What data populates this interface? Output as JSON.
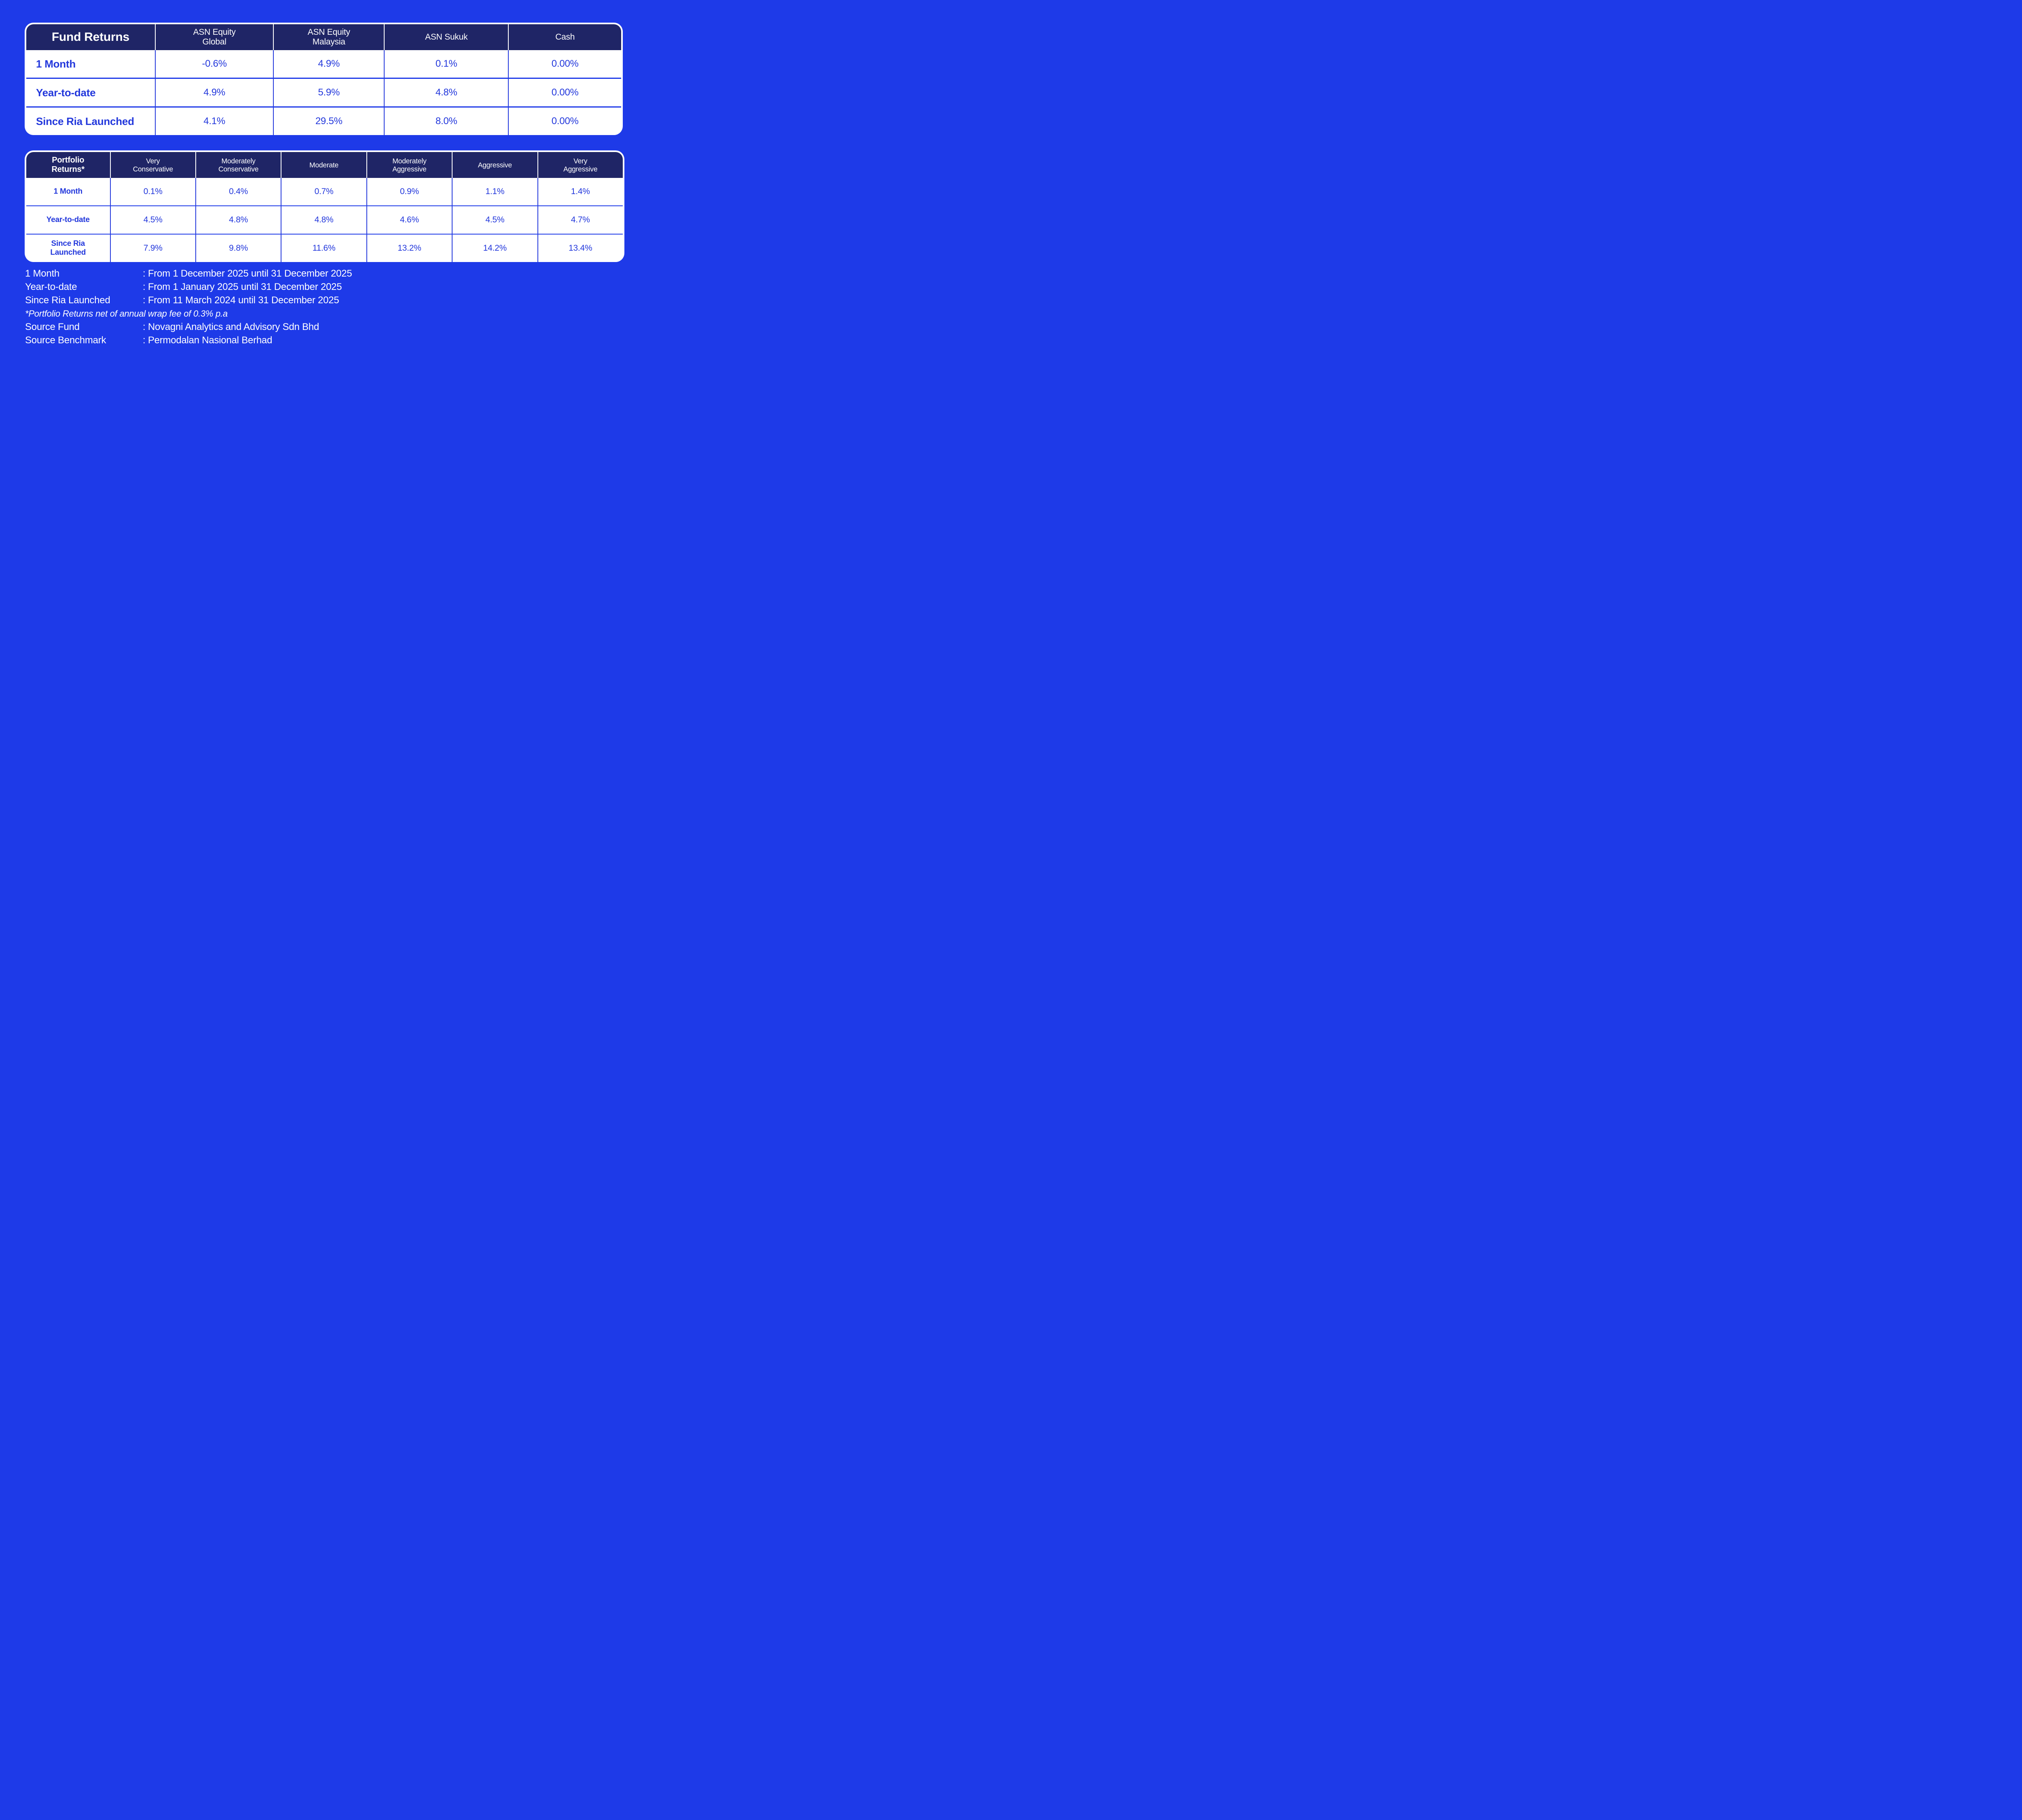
{
  "colors": {
    "background": "#1E3AE8",
    "header_bg": "#1F2566",
    "header_text": "#FFFFFF",
    "cell_bg": "#FFFFFF",
    "cell_text": "#2338DC",
    "footer_text": "#FFFFFF"
  },
  "fund_returns_table": {
    "title": "Fund Returns",
    "columns": [
      "ASN Equity Global",
      "ASN Equity Malaysia",
      "ASN Sukuk",
      "Cash"
    ],
    "rows": [
      {
        "label": "1 Month",
        "values": [
          "-0.6%",
          "4.9%",
          "0.1%",
          "0.00%"
        ]
      },
      {
        "label": "Year-to-date",
        "values": [
          "4.9%",
          "5.9%",
          "4.8%",
          "0.00%"
        ]
      },
      {
        "label": "Since Ria Launched",
        "values": [
          "4.1%",
          "29.5%",
          "8.0%",
          "0.00%"
        ]
      }
    ]
  },
  "portfolio_returns_table": {
    "title": "Portfolio Returns*",
    "columns": [
      "Very Conservative",
      "Moderately Conservative",
      "Moderate",
      "Moderately Aggressive",
      "Aggressive",
      "Very Aggressive"
    ],
    "rows": [
      {
        "label": "1 Month",
        "values": [
          "0.1%",
          "0.4%",
          "0.7%",
          "0.9%",
          "1.1%",
          "1.4%"
        ]
      },
      {
        "label": "Year-to-date",
        "values": [
          "4.5%",
          "4.8%",
          "4.8%",
          "4.6%",
          "4.5%",
          "4.7%"
        ]
      },
      {
        "label": "Since Ria Launched",
        "values": [
          "7.9%",
          "9.8%",
          "11.6%",
          "13.2%",
          "14.2%",
          "13.4%"
        ]
      }
    ]
  },
  "footnotes": {
    "definitions": [
      {
        "term": "1 Month",
        "description": ": From 1 December 2025 until 31 December 2025"
      },
      {
        "term": "Year-to-date",
        "description": ": From 1 January 2025 until 31 December 2025"
      },
      {
        "term": "Since Ria Launched",
        "description": ": From 11 March 2024 until 31 December 2025"
      }
    ],
    "note": "*Portfolio Returns net of annual wrap fee of 0.3% p.a",
    "sources": [
      {
        "term": "Source Fund",
        "description": ": Novagni Analytics and Advisory Sdn Bhd"
      },
      {
        "term": "Source Benchmark",
        "description": ": Permodalan Nasional Berhad"
      }
    ]
  },
  "chart_data": [
    {
      "type": "table",
      "title": "Fund Returns",
      "columns": [
        "Fund Returns",
        "ASN Equity Global",
        "ASN Equity Malaysia",
        "ASN Sukuk",
        "Cash"
      ],
      "rows": [
        [
          "1 Month",
          "-0.6%",
          "4.9%",
          "0.1%",
          "0.00%"
        ],
        [
          "Year-to-date",
          "4.9%",
          "5.9%",
          "4.8%",
          "0.00%"
        ],
        [
          "Since Ria Launched",
          "4.1%",
          "29.5%",
          "8.0%",
          "0.00%"
        ]
      ]
    },
    {
      "type": "table",
      "title": "Portfolio Returns*",
      "columns": [
        "Portfolio Returns*",
        "Very Conservative",
        "Moderately Conservative",
        "Moderate",
        "Moderately Aggressive",
        "Aggressive",
        "Very Aggressive"
      ],
      "rows": [
        [
          "1 Month",
          "0.1%",
          "0.4%",
          "0.7%",
          "0.9%",
          "1.1%",
          "1.4%"
        ],
        [
          "Year-to-date",
          "4.5%",
          "4.8%",
          "4.8%",
          "4.6%",
          "4.5%",
          "4.7%"
        ],
        [
          "Since Ria Launched",
          "7.9%",
          "9.8%",
          "11.6%",
          "13.2%",
          "14.2%",
          "13.4%"
        ]
      ]
    }
  ]
}
